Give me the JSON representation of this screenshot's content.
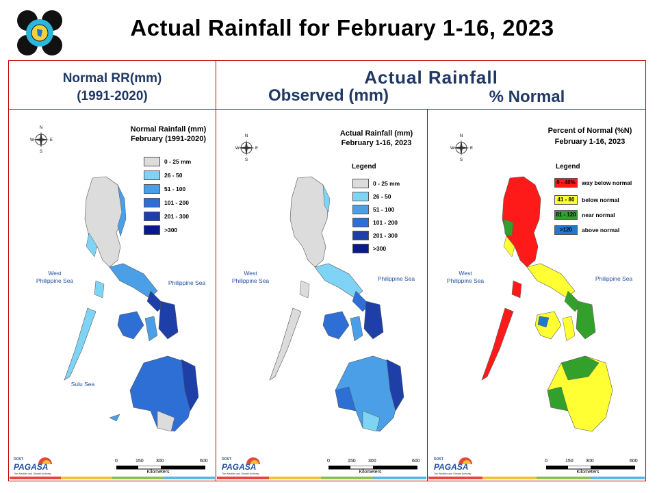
{
  "title": "Actual Rainfall for February 1-16, 2023",
  "headers": {
    "normal_line1": "Normal RR(mm)",
    "normal_line2": "(1991-2020)",
    "actual": "Actual Rainfall",
    "observed": "Observed (mm)",
    "percent": "% Normal"
  },
  "panels": [
    {
      "title_line1": "Normal Rainfall (mm)",
      "title_line2": "February (1991-2020)",
      "legend_title": "",
      "legend": [
        {
          "label": "0 - 25 mm",
          "color": "#dcdcdc"
        },
        {
          "label": "26 - 50",
          "color": "#7fd4f5"
        },
        {
          "label": "51 - 100",
          "color": "#4a9fe6"
        },
        {
          "label": "101 - 200",
          "color": "#2e6fd6"
        },
        {
          "label": "201 - 300",
          "color": "#1f3fa8"
        },
        {
          "label": ">300",
          "color": "#0a1a8c"
        }
      ],
      "sea_west_1": "West",
      "sea_west_2": "Philippine Sea",
      "sea_east": "Philippine Sea",
      "sea_sulu": "Sulu Sea"
    },
    {
      "title_line1": "Actual Rainfall (mm)",
      "title_line2": "February 1-16, 2023",
      "legend_title": "Legend",
      "legend": [
        {
          "label": "0 - 25 mm",
          "color": "#dcdcdc"
        },
        {
          "label": "26 - 50",
          "color": "#7fd4f5"
        },
        {
          "label": "51 - 100",
          "color": "#4a9fe6"
        },
        {
          "label": "101 - 200",
          "color": "#2e6fd6"
        },
        {
          "label": "201 - 300",
          "color": "#1f3fa8"
        },
        {
          "label": ">300",
          "color": "#0a1a8c"
        }
      ],
      "sea_west_1": "West",
      "sea_west_2": "Philippine Sea",
      "sea_east": "Philippine Sea"
    },
    {
      "title_line1": "Percent of Normal (%N)",
      "title_line2": "February 1-16, 2023",
      "legend_title": "Legend",
      "legend": [
        {
          "range": "0 - 40%",
          "label": "way below normal",
          "color": "#ff1a1a"
        },
        {
          "range": "41 - 80",
          "label": "below normal",
          "color": "#ffff33"
        },
        {
          "range": "81 - 120",
          "label": "near normal",
          "color": "#33a02c"
        },
        {
          "range": ">120",
          "label": "above normal",
          "color": "#1f78d1"
        }
      ],
      "sea_west_1": "West",
      "sea_west_2": "Philippine Sea",
      "sea_east": "Philippine Sea"
    }
  ],
  "scale": {
    "ticks": [
      "0",
      "150",
      "300",
      "600"
    ],
    "unit": "Kilometers"
  },
  "compass": {
    "n": "N",
    "s": "S",
    "e": "E",
    "w": "W"
  },
  "branding": {
    "name": "PAGASA",
    "dost": "DOST",
    "tagline": "The Weather and Climate Authority"
  }
}
